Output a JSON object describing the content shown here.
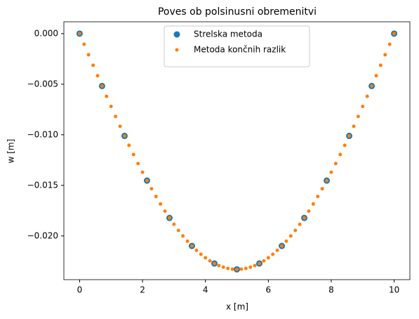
{
  "chart_data": {
    "type": "scatter",
    "title": "Poves ob polsinusni obremenitvi",
    "xlabel": "x [m]",
    "ylabel": "w [m]",
    "xlim": [
      -0.5,
      10.5
    ],
    "ylim": [
      -0.02432,
      0.00117
    ],
    "xticks": [
      0,
      2,
      4,
      6,
      8,
      10
    ],
    "yticks": [
      {
        "value": 0,
        "label": "0.000"
      },
      {
        "value": -0.005,
        "label": "−0.005"
      },
      {
        "value": -0.01,
        "label": "−0.010"
      },
      {
        "value": -0.015,
        "label": "−0.015"
      },
      {
        "value": -0.02,
        "label": "−0.020"
      }
    ],
    "legend": "upper center",
    "series": [
      {
        "name": "Strelska metoda",
        "color": "#1f77b4",
        "size": 4.5,
        "x": [
          0,
          0.714,
          1.429,
          2.143,
          2.857,
          3.571,
          4.286,
          5,
          5.714,
          6.429,
          7.143,
          7.857,
          8.571,
          9.286,
          10
        ],
        "values": [
          0,
          -0.00518,
          -0.01011,
          -0.01453,
          -0.01822,
          -0.02099,
          -0.02272,
          -0.0233,
          -0.02272,
          -0.02099,
          -0.01822,
          -0.01453,
          -0.01011,
          -0.00518,
          0
        ]
      },
      {
        "name": "Metoda končnih razlik",
        "color": "#ff7f0e",
        "size": 2.5,
        "x": [
          0,
          0.143,
          0.286,
          0.429,
          0.571,
          0.714,
          0.857,
          1,
          1.143,
          1.286,
          1.429,
          1.571,
          1.714,
          1.857,
          2,
          2.143,
          2.286,
          2.429,
          2.571,
          2.714,
          2.857,
          3,
          3.143,
          3.286,
          3.429,
          3.571,
          3.714,
          3.857,
          4,
          4.143,
          4.286,
          4.429,
          4.571,
          4.714,
          4.857,
          5,
          5.143,
          5.286,
          5.429,
          5.571,
          5.714,
          5.857,
          6,
          6.143,
          6.286,
          6.429,
          6.571,
          6.714,
          6.857,
          7,
          7.143,
          7.286,
          7.429,
          7.571,
          7.714,
          7.857,
          8,
          8.143,
          8.286,
          8.429,
          8.571,
          8.714,
          8.857,
          9,
          9.143,
          9.286,
          9.429,
          9.571,
          9.714,
          9.857,
          10
        ],
        "values": [
          0,
          -0.00105,
          -0.00209,
          -0.00313,
          -0.00416,
          -0.00518,
          -0.0062,
          -0.0072,
          -0.00819,
          -0.00916,
          -0.01011,
          -0.01104,
          -0.01195,
          -0.01284,
          -0.0137,
          -0.01453,
          -0.01533,
          -0.0161,
          -0.01684,
          -0.01755,
          -0.01822,
          -0.01885,
          -0.01945,
          -0.02,
          -0.02052,
          -0.02099,
          -0.02142,
          -0.02181,
          -0.02216,
          -0.02246,
          -0.02272,
          -0.02293,
          -0.02309,
          -0.02321,
          -0.02328,
          -0.0233,
          -0.02328,
          -0.02321,
          -0.02309,
          -0.02293,
          -0.02272,
          -0.02246,
          -0.02216,
          -0.02181,
          -0.02142,
          -0.02099,
          -0.02052,
          -0.02,
          -0.01945,
          -0.01885,
          -0.01822,
          -0.01755,
          -0.01684,
          -0.0161,
          -0.01533,
          -0.01453,
          -0.0137,
          -0.01284,
          -0.01195,
          -0.01104,
          -0.01011,
          -0.00916,
          -0.00819,
          -0.0072,
          -0.0062,
          -0.00518,
          -0.00416,
          -0.00313,
          -0.00209,
          -0.00105,
          0
        ]
      }
    ]
  }
}
